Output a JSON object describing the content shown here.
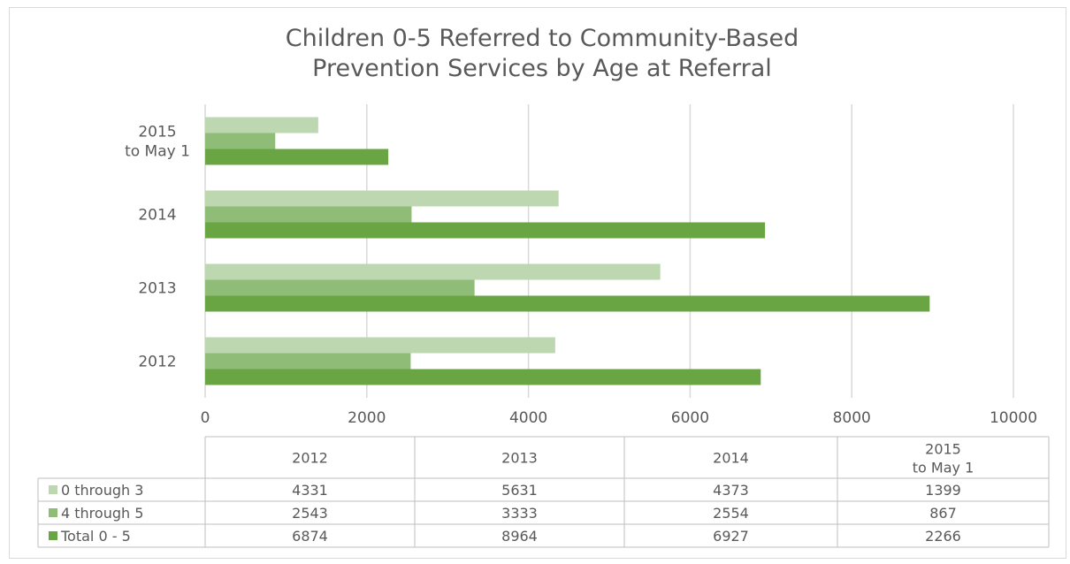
{
  "chart_data": {
    "type": "bar",
    "orientation": "horizontal",
    "title": "Children 0-5 Referred to Community-Based Prevention Services by Age at Referral",
    "title_lines": [
      "Children 0-5 Referred to Community-Based",
      "Prevention Services by Age at Referral"
    ],
    "categories": [
      "2012",
      "2013",
      "2014",
      "2015 to May 1"
    ],
    "category_lines": [
      [
        "2012"
      ],
      [
        "2013"
      ],
      [
        "2014"
      ],
      [
        "2015",
        "to May 1"
      ]
    ],
    "series": [
      {
        "name": "0 through 3",
        "values": [
          4331,
          5631,
          4373,
          1399
        ],
        "color": "#bdd7b0"
      },
      {
        "name": "4 through 5",
        "values": [
          2543,
          3333,
          2554,
          867
        ],
        "color": "#8fbd78"
      },
      {
        "name": "Total 0 - 5",
        "values": [
          6874,
          8964,
          6927,
          2266
        ],
        "color": "#6aa544"
      }
    ],
    "xlim": [
      0,
      10000
    ],
    "ticks": [
      0,
      2000,
      4000,
      6000,
      8000,
      10000
    ],
    "grid": true,
    "legend": "data-table"
  },
  "table_values": [
    [
      "4331",
      "5631",
      "4373",
      "1399"
    ],
    [
      "2543",
      "3333",
      "2554",
      "867"
    ],
    [
      "6874",
      "8964",
      "6927",
      "2266"
    ]
  ]
}
